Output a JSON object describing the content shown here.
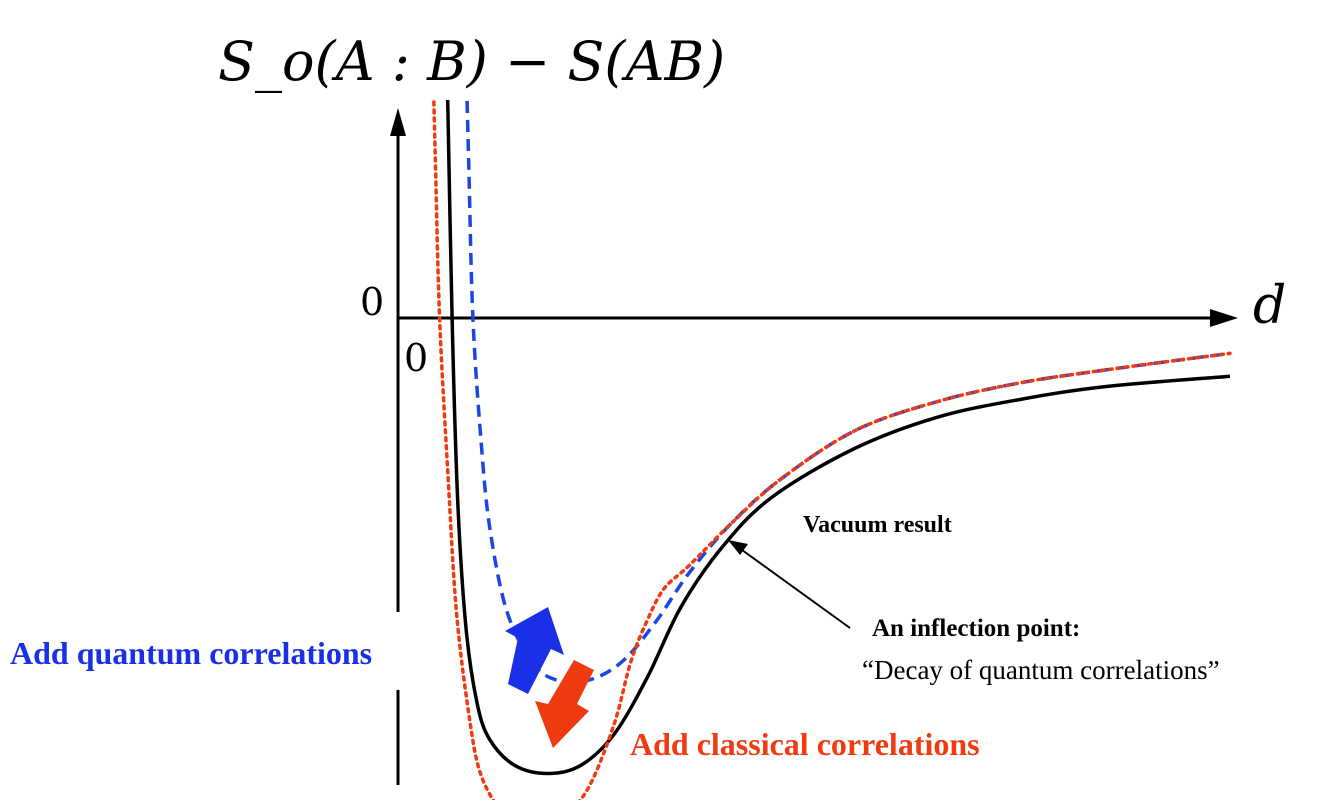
{
  "chart_data": {
    "type": "line",
    "title": "",
    "ylabel": "S_o(A : B) − S(AB)",
    "xlabel": "d",
    "x_tick_labels": [
      "0"
    ],
    "y_tick_labels": [
      "0"
    ],
    "xlim": [
      0,
      10
    ],
    "ylim": [
      -5,
      3
    ],
    "grid": false,
    "legend": "none",
    "series": [
      {
        "style": "solid",
        "color": "#000000",
        "x": [
          0.55,
          0.6,
          0.65,
          0.72,
          0.82,
          0.95,
          1.1,
          1.4,
          1.8,
          2.2,
          2.6,
          3.0,
          3.4,
          3.9,
          4.5,
          5.5,
          6.5,
          7.5,
          8.5,
          10.0
        ],
        "y": [
          3.5,
          2.0,
          0.0,
          -1.8,
          -3.0,
          -3.7,
          -4.05,
          -4.3,
          -4.38,
          -4.3,
          -4.0,
          -3.45,
          -2.78,
          -2.2,
          -1.72,
          -1.25,
          -0.95,
          -0.78,
          -0.66,
          -0.56
        ]
      },
      {
        "style": "dashed",
        "color": "#1b46e0",
        "x": [
          0.8,
          0.85,
          0.9,
          1.0,
          1.1,
          1.3,
          1.6,
          1.9,
          2.3,
          2.7,
          3.1,
          3.5,
          4.0,
          4.6,
          5.5,
          6.5,
          7.5,
          8.5,
          10.0
        ],
        "y": [
          3.0,
          1.5,
          0.0,
          -1.2,
          -2.0,
          -2.8,
          -3.3,
          -3.48,
          -3.48,
          -3.3,
          -2.92,
          -2.45,
          -1.98,
          -1.55,
          -1.08,
          -0.8,
          -0.62,
          -0.5,
          -0.34
        ]
      },
      {
        "style": "dotted",
        "color": "#f03a10",
        "x": [
          0.4,
          0.45,
          0.5,
          0.6,
          0.7,
          0.85,
          1.0,
          1.3,
          1.6,
          1.8,
          2.0,
          2.3,
          2.6,
          2.8,
          3.0,
          3.2,
          3.5,
          4.0,
          4.6,
          5.5,
          6.5,
          7.5,
          8.5,
          10.0
        ],
        "y": [
          3.0,
          1.5,
          0.0,
          -1.5,
          -2.8,
          -3.8,
          -4.4,
          -4.8,
          -4.9,
          -4.88,
          -4.8,
          -4.5,
          -3.9,
          -3.3,
          -2.9,
          -2.6,
          -2.38,
          -1.98,
          -1.55,
          -1.08,
          -0.8,
          -0.62,
          -0.5,
          -0.34
        ]
      }
    ],
    "annotations": {
      "vacuum": "Vacuum result",
      "inflection_title": "An inflection point:",
      "inflection_subtitle": "“Decay of quantum correlations”",
      "quantum": "Add quantum correlations",
      "classical": "Add classical correlations"
    },
    "colors": {
      "vacuum": "#000000",
      "quantum": "#1930e6",
      "classical": "#f03a10"
    }
  }
}
